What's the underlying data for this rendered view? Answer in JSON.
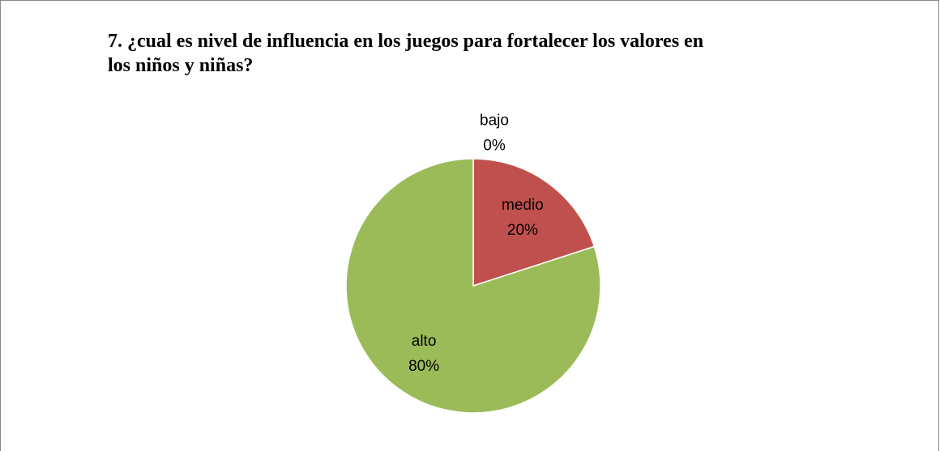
{
  "chart_data": {
    "type": "pie",
    "title": "7. ¿cual es nivel de influencia en los juegos para fortalecer los valores en los niños y niñas?",
    "categories": [
      "bajo",
      "medio",
      "alto"
    ],
    "values": [
      0,
      20,
      80
    ],
    "value_labels": [
      "0%",
      "20%",
      "80%"
    ],
    "colors": [
      "#4f81bd",
      "#c0504d",
      "#9bbb59"
    ]
  }
}
